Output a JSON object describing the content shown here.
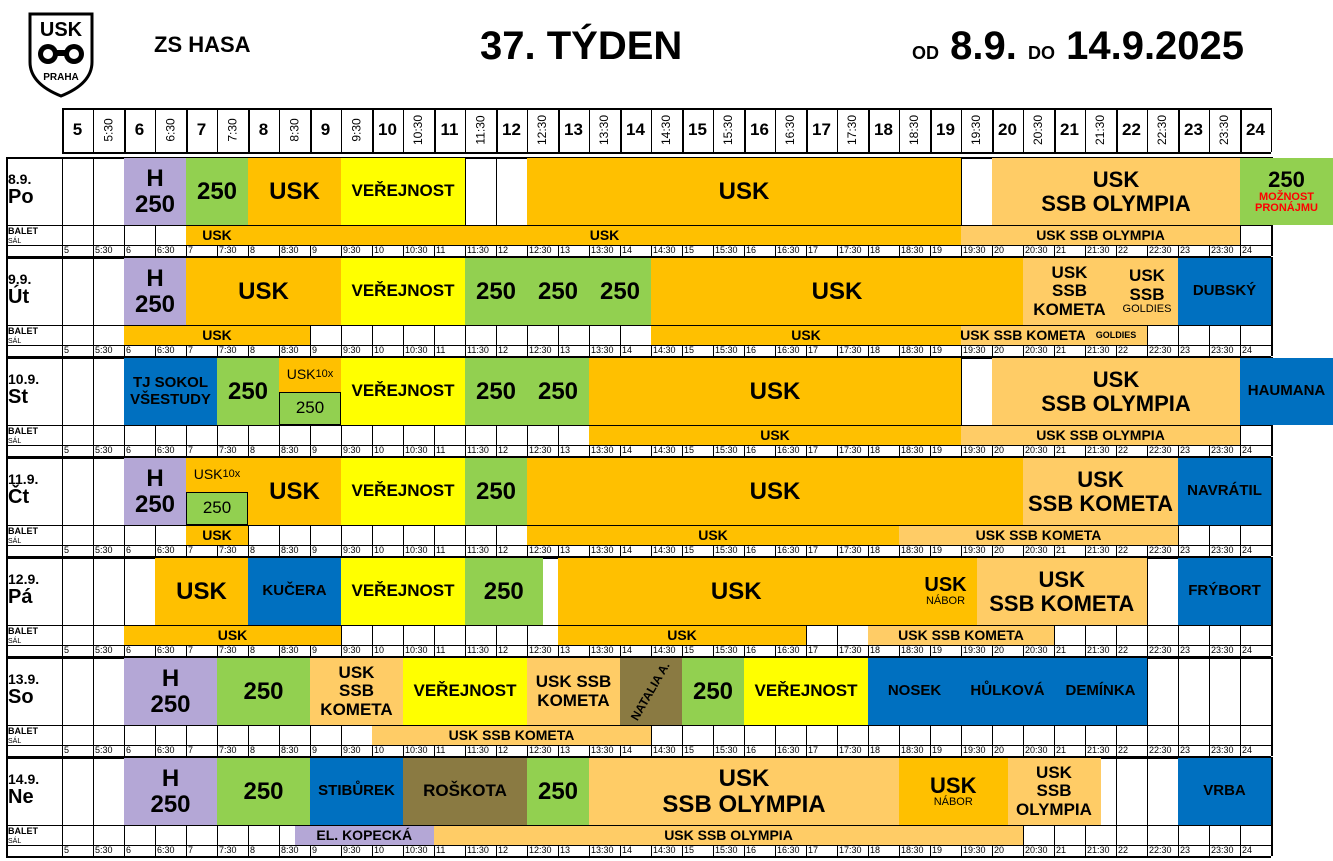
{
  "header": {
    "logo_text": "USK",
    "logo_subtext": "PRAHA",
    "rink_name": "ZS HASA",
    "week_title": "37. TÝDEN",
    "date_from_prefix": "OD",
    "date_from": "8.9.",
    "date_to_prefix": "DO",
    "date_to": "14.9.2025"
  },
  "time_labels": [
    "5",
    "5:30",
    "6",
    "6:30",
    "7",
    "7:30",
    "8",
    "8:30",
    "9",
    "9:30",
    "10",
    "10:30",
    "11",
    "11:30",
    "12",
    "12:30",
    "13",
    "13:30",
    "14",
    "14:30",
    "15",
    "15:30",
    "16",
    "16:30",
    "17",
    "17:30",
    "18",
    "18:30",
    "19",
    "19:30",
    "20",
    "20:30",
    "21",
    "21:30",
    "22",
    "22:30",
    "23",
    "23:30",
    "24"
  ],
  "balet_label": "BALET",
  "balet_sublabel": "SÁL",
  "colors": {
    "h": "#b4a7d6",
    "group_250": "#92d050",
    "usk": "#ffc000",
    "usk_ssb": "#ffcc66",
    "verejnost": "#ffff00",
    "external": "#0070c0",
    "olive": "#8a7a42",
    "red_text": "#ff0000"
  },
  "days": [
    {
      "date": "8.9.",
      "dow": "Po",
      "blocks": [
        {
          "start": 6,
          "end": 7,
          "color": "h",
          "lines": [
            "H",
            "250"
          ],
          "size": 24
        },
        {
          "start": 7,
          "end": 8,
          "color": "group_250",
          "lines": [
            "250"
          ],
          "size": 24
        },
        {
          "start": 8,
          "end": 9.5,
          "color": "usk",
          "lines": [
            "USK"
          ],
          "size": 24
        },
        {
          "start": 9.5,
          "end": 11.5,
          "color": "verejnost",
          "lines": [
            "VEŘEJNOST"
          ],
          "size": 17
        },
        {
          "start": 12.5,
          "end": 19.5,
          "color": "usk",
          "lines": [
            "USK"
          ],
          "size": 24
        },
        {
          "start": 20,
          "end": 24,
          "color": "usk_ssb",
          "lines": [
            "USK",
            "SSB OLYMPIA"
          ],
          "size": 22
        },
        {
          "start": 24,
          "end": 25.5,
          "color": "group_250",
          "lines": [
            "250"
          ],
          "size": 22,
          "red_lines": [
            "MOŽNOST",
            "PRONÁJMU"
          ]
        }
      ],
      "balet": [
        {
          "start": 7,
          "end": 8,
          "color": "usk",
          "text": "USK"
        },
        {
          "start": 8,
          "end": 19.5,
          "color": "usk",
          "text": "USK"
        },
        {
          "start": 19.5,
          "end": 24,
          "color": "usk_ssb",
          "text": "USK SSB OLYMPIA"
        }
      ]
    },
    {
      "date": "9.9.",
      "dow": "Út",
      "blocks": [
        {
          "start": 6,
          "end": 7,
          "color": "h",
          "lines": [
            "H",
            "250"
          ],
          "size": 24
        },
        {
          "start": 7,
          "end": 9.5,
          "color": "usk",
          "lines": [
            "USK"
          ],
          "size": 24
        },
        {
          "start": 9.5,
          "end": 11.5,
          "color": "verejnost",
          "lines": [
            "VEŘEJNOST"
          ],
          "size": 17
        },
        {
          "start": 11.5,
          "end": 12.5,
          "color": "group_250",
          "lines": [
            "250"
          ],
          "size": 24
        },
        {
          "start": 12.5,
          "end": 13.5,
          "color": "group_250",
          "lines": [
            "250"
          ],
          "size": 24
        },
        {
          "start": 13.5,
          "end": 14.5,
          "color": "group_250",
          "lines": [
            "250"
          ],
          "size": 24
        },
        {
          "start": 14.5,
          "end": 20.5,
          "color": "usk",
          "lines": [
            "USK"
          ],
          "size": 24
        },
        {
          "start": 20.5,
          "end": 22,
          "color": "usk_ssb",
          "lines": [
            "USK",
            "SSB",
            "KOMETA"
          ],
          "size": 17
        },
        {
          "start": 22,
          "end": 23,
          "color": "usk_ssb",
          "lines": [
            "USK",
            "SSB"
          ],
          "size": 17,
          "small_line": "GOLDIES"
        },
        {
          "start": 23,
          "end": 24.5,
          "color": "external",
          "lines": [
            "DUBSKÝ"
          ],
          "size": 15
        }
      ],
      "balet": [
        {
          "start": 6,
          "end": 9,
          "color": "usk",
          "text": "USK"
        },
        {
          "start": 14.5,
          "end": 19.5,
          "color": "usk",
          "text": "USK"
        },
        {
          "start": 19.5,
          "end": 21.5,
          "color": "usk_ssb",
          "text": "USK SSB KOMETA"
        },
        {
          "start": 21.5,
          "end": 22.5,
          "color": "usk_ssb",
          "text": "GOLDIES",
          "small": true
        }
      ]
    },
    {
      "date": "10.9.",
      "dow": "St",
      "blocks": [
        {
          "start": 6,
          "end": 7.5,
          "color": "external",
          "lines": [
            "TJ SOKOL",
            "VŠESTUDY"
          ],
          "size": 15
        },
        {
          "start": 7.5,
          "end": 8.5,
          "color": "group_250",
          "lines": [
            "250"
          ],
          "size": 24
        },
        {
          "start": 8.5,
          "end": 9.5,
          "color": "usk",
          "lines": [
            "USK"
          ],
          "size": 14,
          "sub": "10x",
          "split_bottom": "250"
        },
        {
          "start": 9.5,
          "end": 11.5,
          "color": "verejnost",
          "lines": [
            "VEŘEJNOST"
          ],
          "size": 17
        },
        {
          "start": 11.5,
          "end": 12.5,
          "color": "group_250",
          "lines": [
            "250"
          ],
          "size": 24
        },
        {
          "start": 12.5,
          "end": 13.5,
          "color": "group_250",
          "lines": [
            "250"
          ],
          "size": 24
        },
        {
          "start": 13.5,
          "end": 19.5,
          "color": "usk",
          "lines": [
            "USK"
          ],
          "size": 24
        },
        {
          "start": 20,
          "end": 24,
          "color": "usk_ssb",
          "lines": [
            "USK",
            "SSB OLYMPIA"
          ],
          "size": 22
        },
        {
          "start": 24,
          "end": 25.5,
          "color": "external",
          "lines": [
            "HAUMANA"
          ],
          "size": 15
        }
      ],
      "balet": [
        {
          "start": 13.5,
          "end": 19.5,
          "color": "usk",
          "text": "USK"
        },
        {
          "start": 19.5,
          "end": 24,
          "color": "usk_ssb",
          "text": "USK SSB OLYMPIA"
        }
      ]
    },
    {
      "date": "11.9.",
      "dow": "Čt",
      "blocks": [
        {
          "start": 6,
          "end": 7,
          "color": "h",
          "lines": [
            "H",
            "250"
          ],
          "size": 24
        },
        {
          "start": 7,
          "end": 8,
          "color": "usk",
          "lines": [
            "USK"
          ],
          "size": 14,
          "sub": "10x",
          "split_bottom": "250"
        },
        {
          "start": 8,
          "end": 9.5,
          "color": "usk",
          "lines": [
            "USK"
          ],
          "size": 24
        },
        {
          "start": 9.5,
          "end": 11.5,
          "color": "verejnost",
          "lines": [
            "VEŘEJNOST"
          ],
          "size": 17
        },
        {
          "start": 11.5,
          "end": 12.5,
          "color": "group_250",
          "lines": [
            "250"
          ],
          "size": 24
        },
        {
          "start": 12.5,
          "end": 20.5,
          "color": "usk",
          "lines": [
            "USK"
          ],
          "size": 24
        },
        {
          "start": 20.5,
          "end": 23,
          "color": "usk_ssb",
          "lines": [
            "USK",
            "SSB KOMETA"
          ],
          "size": 22
        },
        {
          "start": 23,
          "end": 24.5,
          "color": "external",
          "lines": [
            "NAVRÁTIL"
          ],
          "size": 15
        }
      ],
      "balet": [
        {
          "start": 7,
          "end": 8,
          "color": "usk",
          "text": "USK"
        },
        {
          "start": 12.5,
          "end": 18.5,
          "color": "usk",
          "text": "USK"
        },
        {
          "start": 18.5,
          "end": 23,
          "color": "usk_ssb",
          "text": "USK SSB KOMETA"
        }
      ]
    },
    {
      "date": "12.9.",
      "dow": "Pá",
      "blocks": [
        {
          "start": 6.5,
          "end": 8,
          "color": "usk",
          "lines": [
            "USK"
          ],
          "size": 24
        },
        {
          "start": 8,
          "end": 9.5,
          "color": "external",
          "lines": [
            "KUČERA"
          ],
          "size": 15
        },
        {
          "start": 9.5,
          "end": 11.5,
          "color": "verejnost",
          "lines": [
            "VEŘEJNOST"
          ],
          "size": 17
        },
        {
          "start": 11.5,
          "end": 12.75,
          "color": "group_250",
          "lines": [
            "250"
          ],
          "size": 24
        },
        {
          "start": 13,
          "end": 18.75,
          "color": "usk",
          "lines": [
            "USK"
          ],
          "size": 24
        },
        {
          "start": 18.75,
          "end": 19.75,
          "color": "usk",
          "lines": [
            "USK"
          ],
          "size": 20,
          "small_line": "NÁBOR"
        },
        {
          "start": 19.75,
          "end": 22.5,
          "color": "usk_ssb",
          "lines": [
            "USK",
            "SSB KOMETA"
          ],
          "size": 22
        },
        {
          "start": 23,
          "end": 24.5,
          "color": "external",
          "lines": [
            "FRÝBORT"
          ],
          "size": 15
        }
      ],
      "balet": [
        {
          "start": 6,
          "end": 9.5,
          "color": "usk",
          "text": "USK"
        },
        {
          "start": 13,
          "end": 17,
          "color": "usk",
          "text": "USK"
        },
        {
          "start": 18,
          "end": 21,
          "color": "usk_ssb",
          "text": "USK SSB KOMETA"
        }
      ]
    },
    {
      "date": "13.9.",
      "dow": "So",
      "blocks": [
        {
          "start": 6,
          "end": 7.5,
          "color": "h",
          "lines": [
            "H",
            "250"
          ],
          "size": 24
        },
        {
          "start": 7.5,
          "end": 9,
          "color": "group_250",
          "lines": [
            "250"
          ],
          "size": 24
        },
        {
          "start": 9,
          "end": 10.5,
          "color": "usk_ssb",
          "lines": [
            "USK",
            "SSB",
            "KOMETA"
          ],
          "size": 17
        },
        {
          "start": 10.5,
          "end": 12.5,
          "color": "verejnost",
          "lines": [
            "VEŘEJNOST"
          ],
          "size": 17
        },
        {
          "start": 12.5,
          "end": 14,
          "color": "usk_ssb",
          "lines": [
            "USK SSB",
            "KOMETA"
          ],
          "size": 17
        },
        {
          "start": 14,
          "end": 15,
          "color": "olive",
          "lines": [
            "NATALIA A."
          ],
          "size": 12,
          "rotate": true
        },
        {
          "start": 15,
          "end": 16,
          "color": "group_250",
          "lines": [
            "250"
          ],
          "size": 24
        },
        {
          "start": 16,
          "end": 18,
          "color": "verejnost",
          "lines": [
            "VEŘEJNOST"
          ],
          "size": 17
        },
        {
          "start": 18,
          "end": 19.5,
          "color": "external",
          "lines": [
            "NOSEK"
          ],
          "size": 15
        },
        {
          "start": 19.5,
          "end": 21,
          "color": "external",
          "lines": [
            "HŮLKOVÁ"
          ],
          "size": 15
        },
        {
          "start": 21,
          "end": 22.5,
          "color": "external",
          "lines": [
            "DEMÍNKA"
          ],
          "size": 15
        }
      ],
      "balet": [
        {
          "start": 10,
          "end": 14.5,
          "color": "usk_ssb",
          "text": "USK SSB KOMETA"
        }
      ]
    },
    {
      "date": "14.9.",
      "dow": "Ne",
      "blocks": [
        {
          "start": 6,
          "end": 7.5,
          "color": "h",
          "lines": [
            "H",
            "250"
          ],
          "size": 24
        },
        {
          "start": 7.5,
          "end": 9,
          "color": "group_250",
          "lines": [
            "250"
          ],
          "size": 24
        },
        {
          "start": 9,
          "end": 10.5,
          "color": "external",
          "lines": [
            "STIBŮREK"
          ],
          "size": 15
        },
        {
          "start": 10.5,
          "end": 12.5,
          "color": "olive",
          "lines": [
            "ROŠKOTA"
          ],
          "size": 17
        },
        {
          "start": 12.5,
          "end": 13.5,
          "color": "group_250",
          "lines": [
            "250"
          ],
          "size": 24
        },
        {
          "start": 13.5,
          "end": 18.5,
          "color": "usk_ssb",
          "lines": [
            "USK",
            "SSB OLYMPIA"
          ],
          "size": 24
        },
        {
          "start": 18.5,
          "end": 20.25,
          "color": "usk",
          "lines": [
            "USK"
          ],
          "size": 22,
          "small_line": "NÁBOR"
        },
        {
          "start": 20.25,
          "end": 21.75,
          "color": "usk_ssb",
          "lines": [
            "USK",
            "SSB",
            "OLYMPIA"
          ],
          "size": 17
        },
        {
          "start": 23,
          "end": 24.5,
          "color": "external",
          "lines": [
            "VRBA"
          ],
          "size": 15
        }
      ],
      "balet": [
        {
          "start": 8.75,
          "end": 11,
          "color": "h",
          "text": "EL. KOPECKÁ"
        },
        {
          "start": 11,
          "end": 20.5,
          "color": "usk_ssb",
          "text": "USK SSB OLYMPIA"
        }
      ]
    }
  ]
}
